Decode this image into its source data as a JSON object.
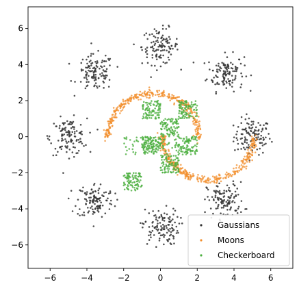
{
  "chart_data": {
    "type": "scatter",
    "title": "",
    "xlabel": "",
    "ylabel": "",
    "xlim": [
      -7.2,
      7.2
    ],
    "ylim": [
      -7.3,
      7.2
    ],
    "xticks": [
      -6,
      -4,
      -2,
      0,
      2,
      4,
      6
    ],
    "yticks": [
      -6,
      -4,
      -2,
      0,
      2,
      4,
      6
    ],
    "xtick_labels": [
      "−6",
      "−4",
      "−2",
      "0",
      "2",
      "4",
      "6"
    ],
    "ytick_labels": [
      "−6",
      "−4",
      "−2",
      "0",
      "2",
      "4",
      "6"
    ],
    "grid": false,
    "legend_position": "lower-right",
    "series": [
      {
        "name": "Gaussians",
        "color": "#333333",
        "pattern": "8 gaussian clusters on a circle of radius 5, std 0.5",
        "centers": [
          [
            5,
            0
          ],
          [
            3.54,
            3.54
          ],
          [
            0,
            5
          ],
          [
            -3.54,
            3.54
          ],
          [
            -5,
            0
          ],
          [
            -3.54,
            -3.54
          ],
          [
            0,
            -5
          ],
          [
            3.54,
            -3.54
          ]
        ],
        "std": 0.5,
        "points_per_cluster": 120
      },
      {
        "name": "Moons",
        "color": "#f28e2b",
        "pattern": "two interleaving half-moon arcs",
        "upper_arc": {
          "center": [
            -0.4,
            -0.1
          ],
          "radius": 2.5,
          "angle_deg": [
            0,
            180
          ]
        },
        "lower_arc": {
          "center": [
            2.6,
            0.1
          ],
          "radius": 2.5,
          "angle_deg": [
            180,
            360
          ]
        },
        "noise": 0.1,
        "points": 700
      },
      {
        "name": "Checkerboard",
        "color": "#4caf40",
        "pattern": "uniform squares of a 4x4 checkerboard",
        "cells": [
          [
            -2,
            1,
            -1,
            0
          ],
          [
            -2,
            -1,
            -3,
            -2
          ],
          [
            -1,
            0,
            1,
            2
          ],
          [
            -1,
            0,
            -1,
            0
          ],
          [
            0,
            1,
            0,
            1
          ],
          [
            0,
            1,
            -2,
            -1
          ],
          [
            1,
            2,
            1,
            2
          ],
          [
            1,
            2,
            -1,
            0
          ]
        ],
        "points_per_cell": 90
      }
    ]
  },
  "legend": {
    "items": [
      {
        "label": "Gaussians",
        "color": "#333333"
      },
      {
        "label": "Moons",
        "color": "#f28e2b"
      },
      {
        "label": "Checkerboard",
        "color": "#4caf40"
      }
    ]
  }
}
